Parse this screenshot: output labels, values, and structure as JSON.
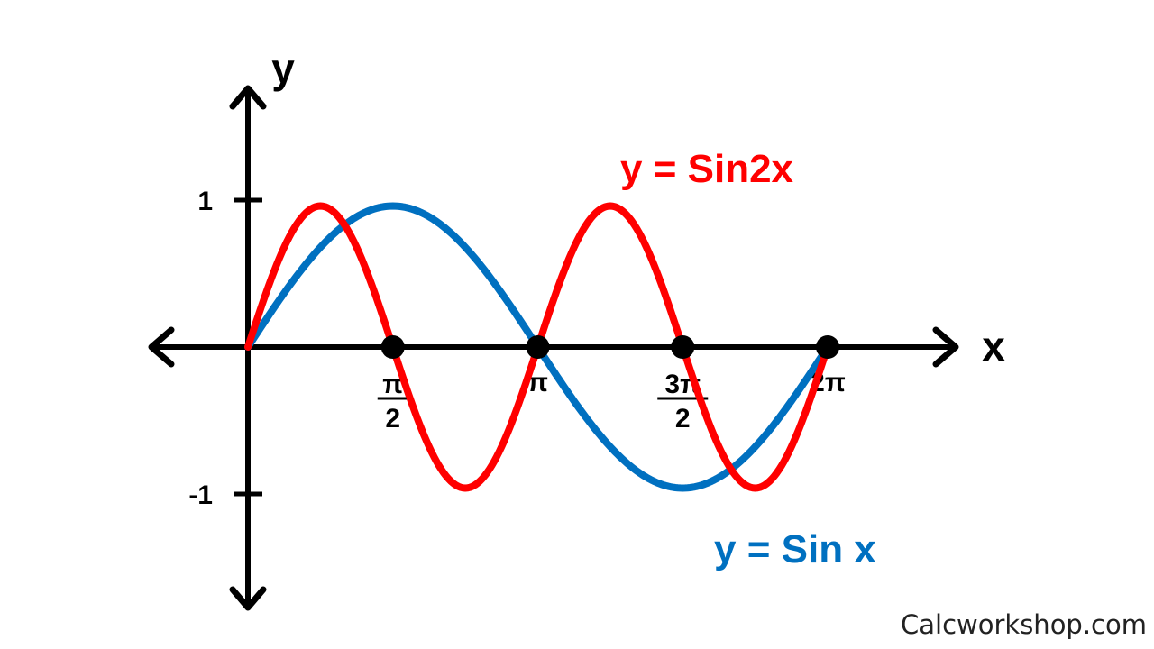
{
  "chart_data": {
    "type": "line",
    "xlabel": "x",
    "ylabel": "y",
    "xlim": [
      0,
      6.2832
    ],
    "ylim": [
      -1,
      1
    ],
    "x_ticks": [
      {
        "value": 1.5708,
        "numerator": "π",
        "denominator": "2"
      },
      {
        "value": 3.1416,
        "label": "π"
      },
      {
        "value": 4.7124,
        "numerator": "3π",
        "denominator": "2"
      },
      {
        "value": 6.2832,
        "label": "2π"
      }
    ],
    "y_ticks": [
      {
        "value": 1,
        "label": "1"
      },
      {
        "value": -1,
        "label": "-1"
      }
    ],
    "marked_points": [
      {
        "x": 1.5708,
        "y": 0
      },
      {
        "x": 3.1416,
        "y": 0
      },
      {
        "x": 4.7124,
        "y": 0
      },
      {
        "x": 6.2832,
        "y": 0
      }
    ],
    "series": [
      {
        "name": "y = Sin x",
        "color": "#0070c0",
        "x": [
          0,
          0.3927,
          0.7854,
          1.1781,
          1.5708,
          1.9635,
          2.3562,
          2.7489,
          3.1416,
          3.5343,
          3.927,
          4.3197,
          4.7124,
          5.1051,
          5.4978,
          5.8905,
          6.2832
        ],
        "values": [
          0,
          0.383,
          0.707,
          0.924,
          1,
          0.924,
          0.707,
          0.383,
          0,
          -0.383,
          -0.707,
          -0.924,
          -1,
          -0.924,
          -0.707,
          -0.383,
          0
        ]
      },
      {
        "name": "y = Sin2x",
        "color": "#ff0000",
        "x": [
          0,
          0.3927,
          0.7854,
          1.1781,
          1.5708,
          1.9635,
          2.3562,
          2.7489,
          3.1416,
          3.5343,
          3.927,
          4.3197,
          4.7124,
          5.1051,
          5.4978,
          5.8905,
          6.2832
        ],
        "values": [
          0,
          0.707,
          1,
          0.707,
          0,
          -0.707,
          -1,
          -0.707,
          0,
          0.707,
          1,
          0.707,
          0,
          -0.707,
          -1,
          -0.707,
          0
        ]
      }
    ]
  },
  "watermark": "Calcworkshop.com"
}
